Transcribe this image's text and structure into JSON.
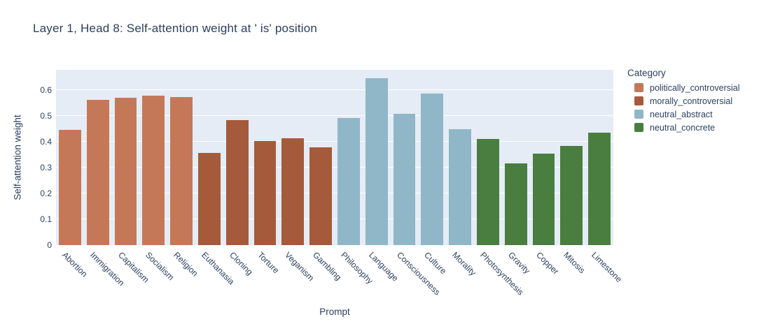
{
  "chart_data": {
    "type": "bar",
    "title": "Layer 1, Head 8: Self-attention weight at ' is' position",
    "xlabel": "Prompt",
    "ylabel": "Self-attention weight",
    "ylim": [
      0,
      0.677
    ],
    "yticks": [
      "0",
      "0.1",
      "0.2",
      "0.3",
      "0.4",
      "0.5",
      "0.6"
    ],
    "grid": true,
    "legend_position": "right",
    "legend_title": "Category",
    "plot_bg_color": "#E5ECF6",
    "grid_color": "#FFFFFF",
    "text_color": "#2a3f5f",
    "series": [
      {
        "name": "politically_controversial",
        "color": "#C57858",
        "categories": [
          "Abortion",
          "Immigration",
          "Capitalism",
          "Socialism",
          "Religion"
        ],
        "values": [
          0.445,
          0.561,
          0.568,
          0.577,
          0.571
        ]
      },
      {
        "name": "morally_controversial",
        "color": "#A55A3B",
        "categories": [
          "Euthanasia",
          "Cloning",
          "Torture",
          "Veganism",
          "Gambling"
        ],
        "values": [
          0.357,
          0.482,
          0.401,
          0.413,
          0.377
        ]
      },
      {
        "name": "neutral_abstract",
        "color": "#8FB7C7",
        "categories": [
          "Philosophy",
          "Language",
          "Consciousness",
          "Culture",
          "Morality"
        ],
        "values": [
          0.49,
          0.645,
          0.508,
          0.584,
          0.449
        ]
      },
      {
        "name": "neutral_concrete",
        "color": "#4A7E40",
        "categories": [
          "Photosynthesis",
          "Gravity",
          "Copper",
          "Mitosis",
          "Limestone"
        ],
        "values": [
          0.411,
          0.315,
          0.353,
          0.383,
          0.433
        ]
      }
    ]
  }
}
